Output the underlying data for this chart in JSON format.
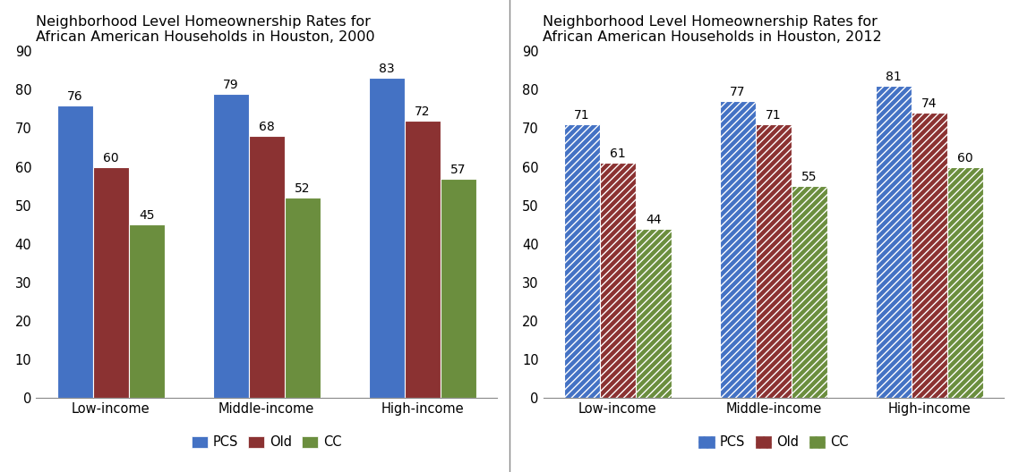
{
  "chart1": {
    "title": "Neighborhood Level Homeownership Rates for\nAfrican American Households in Houston, 2000",
    "categories": [
      "Low-income",
      "Middle-income",
      "High-income"
    ],
    "series": {
      "PCS": [
        76,
        79,
        83
      ],
      "Old": [
        60,
        68,
        72
      ],
      "CC": [
        45,
        52,
        57
      ]
    },
    "colors": {
      "PCS": "#4472C4",
      "Old": "#8B3232",
      "CC": "#6B8E3E"
    },
    "hatches": {
      "PCS": "",
      "Old": "",
      "CC": ""
    }
  },
  "chart2": {
    "title": "Neighborhood Level Homeownership Rates for\nAfrican American Households in Houston, 2012",
    "categories": [
      "Low-income",
      "Middle-income",
      "High-income"
    ],
    "series": {
      "PCS": [
        71,
        77,
        81
      ],
      "Old": [
        61,
        71,
        74
      ],
      "CC": [
        44,
        55,
        60
      ]
    },
    "colors": {
      "PCS": "#4472C4",
      "Old": "#8B3232",
      "CC": "#6B8E3E"
    },
    "hatches": {
      "PCS": "////",
      "Old": "////",
      "CC": "////"
    }
  },
  "ylim": [
    0,
    90
  ],
  "yticks": [
    0,
    10,
    20,
    30,
    40,
    50,
    60,
    70,
    80,
    90
  ],
  "bar_width": 0.23,
  "series_names": [
    "PCS",
    "Old",
    "CC"
  ],
  "value_fontsize": 10,
  "title_fontsize": 11.5,
  "tick_fontsize": 10.5,
  "legend_fontsize": 10.5,
  "bg_color": "#FFFFFF",
  "panel_bg": "#FFFFFF"
}
